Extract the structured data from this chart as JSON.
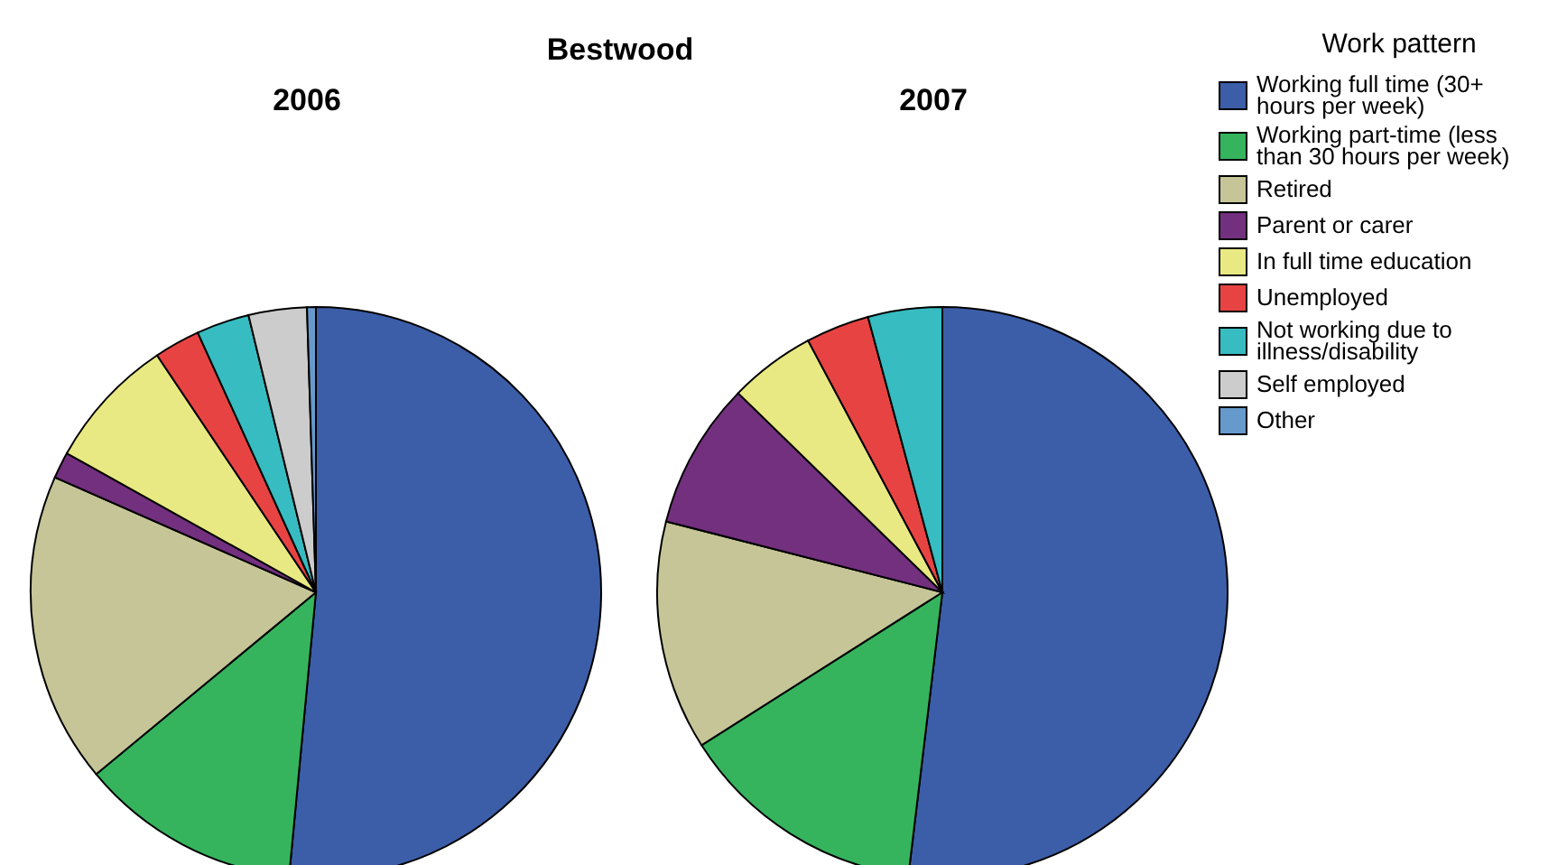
{
  "chart_data": [
    {
      "type": "pie",
      "title": "Bestwood",
      "subtitle": "2006",
      "categories": [
        null,
        null,
        null,
        null,
        null,
        null,
        null,
        null,
        null
      ],
      "values": [
        51.5,
        12.5,
        17.6,
        1.5,
        7.5,
        2.6,
        3.0,
        3.3,
        0.5
      ],
      "colors": [
        "#3c5ea8",
        "#35b45d",
        "#c6c597",
        "#73307f",
        "#e9e983",
        "#e84343",
        "#36bcc1",
        "#cccccc",
        "#6699cc"
      ]
    },
    {
      "type": "pie",
      "subtitle": "2007",
      "legend": "right",
      "legend_title": "Work pattern",
      "categories": [
        "Working full time (30+ hours per week)",
        "Working part-time (less than 30 hours per week)",
        "Retired",
        "Parent or carer",
        "In full time education",
        "Unemployed",
        "Not working due to illness/disability",
        "Self employed",
        "Other"
      ],
      "values": [
        51.9,
        14.1,
        13.0,
        8.3,
        4.9,
        3.6,
        4.2,
        0,
        0
      ],
      "colors": [
        "#3c5ea8",
        "#35b45d",
        "#c6c597",
        "#73307f",
        "#e9e983",
        "#e84343",
        "#36bcc1",
        "#cccccc",
        "#6699cc"
      ]
    }
  ]
}
